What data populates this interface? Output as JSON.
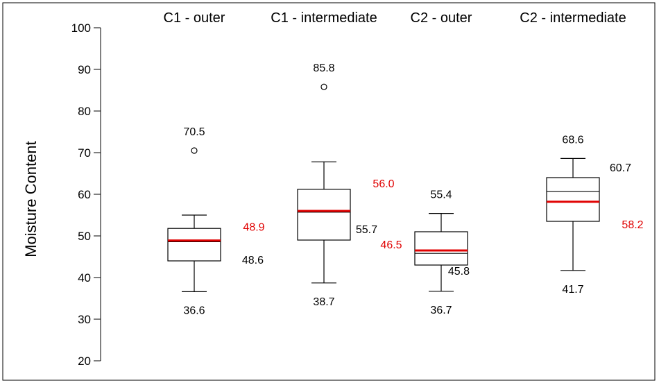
{
  "chart_data": {
    "type": "boxplot",
    "ylabel": "Moisture Content",
    "ylim": [
      20,
      100
    ],
    "yticks": [
      20,
      30,
      40,
      50,
      60,
      70,
      80,
      90,
      100
    ],
    "grid": false,
    "mean_color": "#e00000",
    "median_color": "#000000",
    "groups": [
      {
        "name": "C1 - outer",
        "min": 36.6,
        "q1": 44.0,
        "median": 48.6,
        "mean": 48.9,
        "q3": 51.8,
        "max": 55.0,
        "outliers": [
          70.5
        ],
        "labels": {
          "max": "70.5",
          "median": "48.6",
          "mean": "48.9",
          "min": "36.6"
        }
      },
      {
        "name": "C1 - intermediate",
        "min": 38.7,
        "q1": 49.0,
        "median": 55.7,
        "mean": 56.0,
        "q3": 61.2,
        "max": 67.8,
        "outliers": [
          85.8
        ],
        "labels": {
          "max": "85.8",
          "median": "55.7",
          "mean": "56.0",
          "min": "38.7"
        }
      },
      {
        "name": "C2 - outer",
        "min": 36.7,
        "q1": 43.0,
        "median": 45.8,
        "mean": 46.5,
        "q3": 51.0,
        "max": 55.4,
        "outliers": [],
        "labels": {
          "max": "55.4",
          "median": "45.8",
          "mean": "46.5",
          "min": "36.7"
        }
      },
      {
        "name": "C2 - intermediate",
        "min": 41.7,
        "q1": 53.5,
        "median": 60.7,
        "mean": 58.2,
        "q3": 64.0,
        "max": 68.6,
        "outliers": [],
        "labels": {
          "max": "68.6",
          "median": "60.7",
          "mean": "58.2",
          "min": "41.7"
        }
      }
    ]
  }
}
